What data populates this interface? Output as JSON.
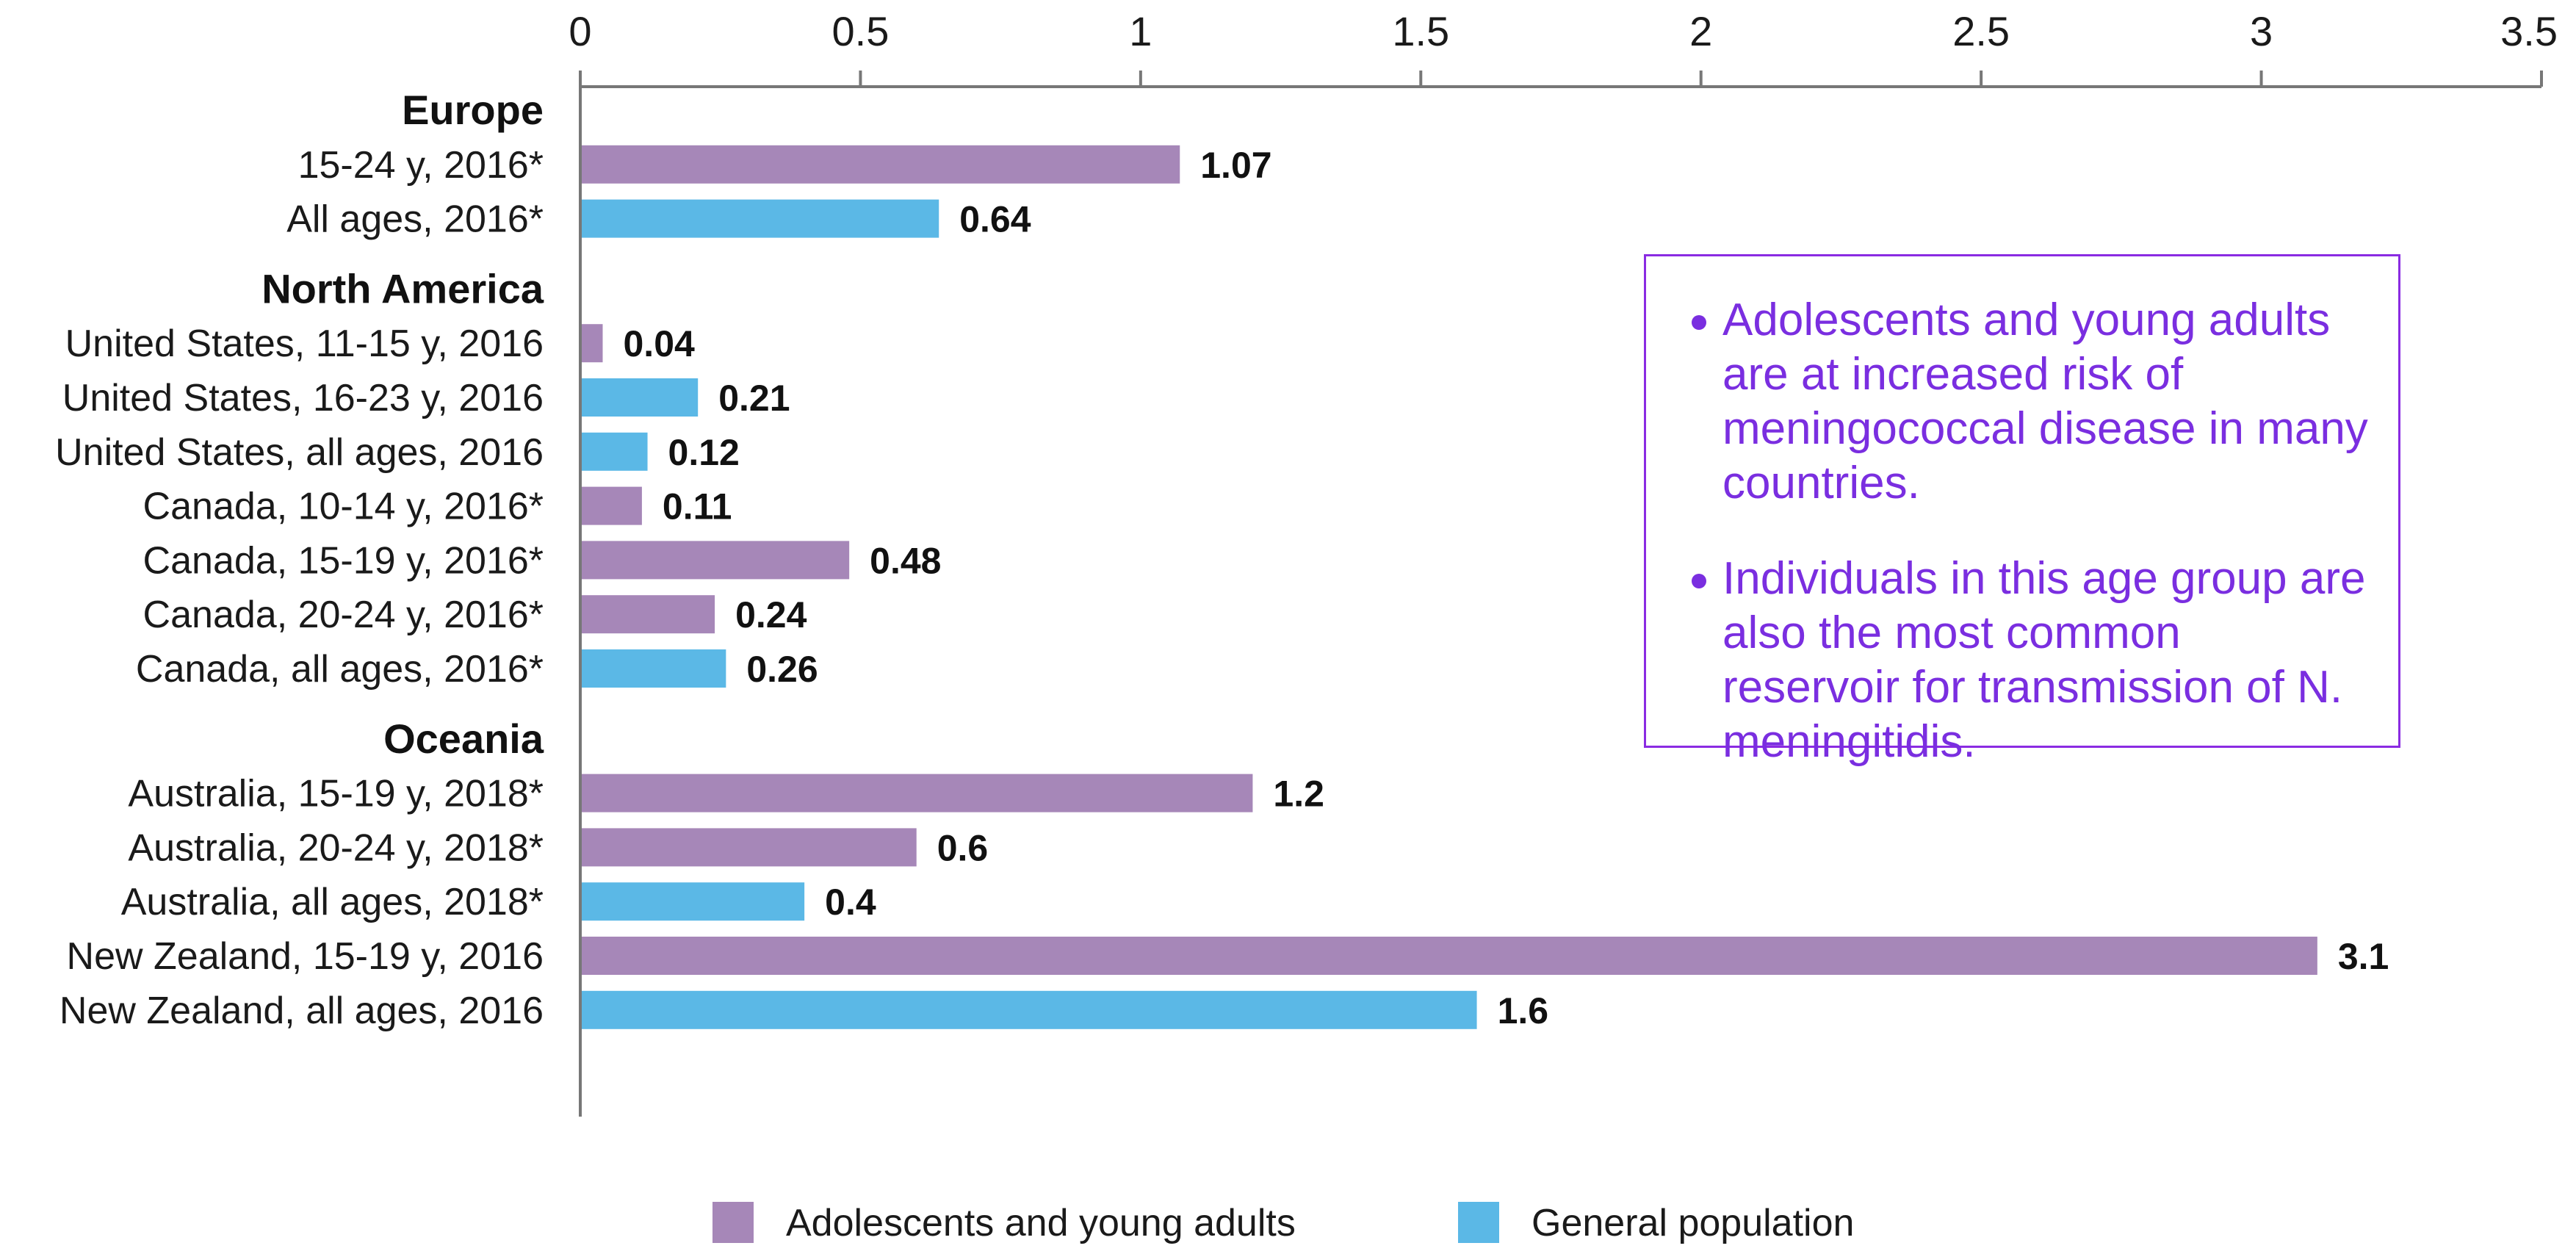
{
  "chart_data": {
    "type": "bar",
    "orientation": "horizontal",
    "title": "",
    "xlabel": "",
    "ylabel": "",
    "xlim": [
      0,
      3.5
    ],
    "x_ticks": [
      "0",
      "0.5",
      "1",
      "1.5",
      "2",
      "2.5",
      "3",
      "3.5"
    ],
    "x_axis_position": "top",
    "grid": false,
    "legend_placement": "bottom",
    "groups": [
      {
        "name": "Europe",
        "bars": [
          {
            "label": "15-24 y, 2016*",
            "value": 1.07,
            "value_label": "1.07",
            "series": "Adolescents and young adults"
          },
          {
            "label": "All ages, 2016*",
            "value": 0.64,
            "value_label": "0.64",
            "series": "General population"
          }
        ]
      },
      {
        "name": "North America",
        "bars": [
          {
            "label": "United States, 11-15 y, 2016",
            "value": 0.04,
            "value_label": "0.04",
            "series": "Adolescents and young adults"
          },
          {
            "label": "United States, 16-23 y, 2016",
            "value": 0.21,
            "value_label": "0.21",
            "series": "General population"
          },
          {
            "label": "United States, all ages, 2016",
            "value": 0.12,
            "value_label": "0.12",
            "series": "General population"
          },
          {
            "label": "Canada, 10-14 y, 2016*",
            "value": 0.11,
            "value_label": "0.11",
            "series": "Adolescents and young adults"
          },
          {
            "label": "Canada, 15-19 y, 2016*",
            "value": 0.48,
            "value_label": "0.48",
            "series": "Adolescents and young adults"
          },
          {
            "label": "Canada, 20-24 y, 2016*",
            "value": 0.24,
            "value_label": "0.24",
            "series": "Adolescents and young adults"
          },
          {
            "label": "Canada, all ages, 2016*",
            "value": 0.26,
            "value_label": "0.26",
            "series": "General population"
          }
        ]
      },
      {
        "name": "Oceania",
        "bars": [
          {
            "label": "Australia, 15-19 y, 2018*",
            "value": 1.2,
            "value_label": "1.2",
            "series": "Adolescents and young adults"
          },
          {
            "label": "Australia, 20-24 y, 2018*",
            "value": 0.6,
            "value_label": "0.6",
            "series": "Adolescents and young adults"
          },
          {
            "label": "Australia, all ages, 2018*",
            "value": 0.4,
            "value_label": "0.4",
            "series": "General population"
          },
          {
            "label": "New Zealand, 15-19 y, 2016",
            "value": 3.1,
            "value_label": "3.1",
            "series": "Adolescents and young adults"
          },
          {
            "label": "New Zealand, all ages, 2016",
            "value": 1.6,
            "value_label": "1.6",
            "series": "General population"
          }
        ]
      }
    ],
    "legend": [
      {
        "name": "Adolescents and young adults",
        "color": "#a687b8"
      },
      {
        "name": "General population",
        "color": "#5bb8e6"
      }
    ]
  },
  "callout": {
    "border_color": "#8a2be2",
    "text_color": "#7a2ee0",
    "bullets": [
      "Adolescents and young adults are at increased risk of meningococcal disease in many countries.",
      "Individuals in this age group are also the most common reservoir for transmission of N. meningitidis."
    ]
  }
}
